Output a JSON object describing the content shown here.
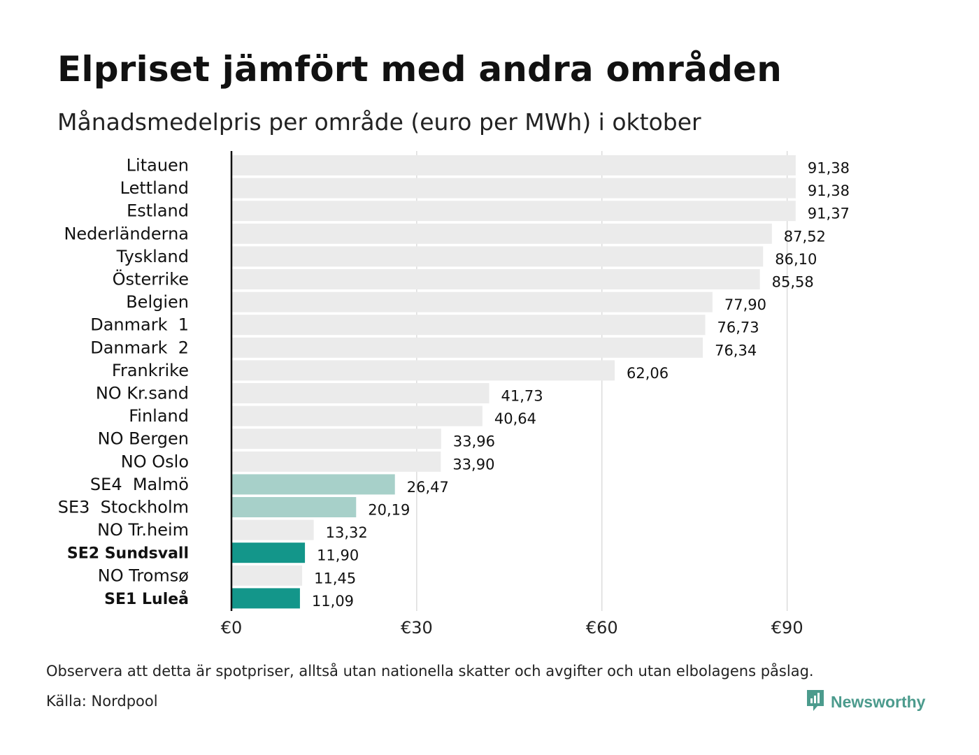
{
  "title": "Elpriset jämfört med andra områden",
  "subtitle": "Månadsmedelpris per område (euro per MWh) i oktober",
  "note": "Observera att detta är spotpriser, alltså utan nationella skatter och avgifter och utan elbolagens påslag.",
  "source": "Källa: Nordpool",
  "brand": {
    "name": "Newsworthy",
    "icon": "newsworthy-logo-icon",
    "color": "#4c9b8d"
  },
  "colors": {
    "default_bar": "#ebebeb",
    "light_highlight": "#a7d0c9",
    "dark_highlight": "#13968a",
    "grid": "#cccccc",
    "axis": "#111111"
  },
  "chart_data": {
    "type": "bar",
    "orientation": "horizontal",
    "xlim": [
      0,
      95
    ],
    "x_ticks": [
      0,
      30,
      60,
      90
    ],
    "x_tick_labels": [
      "€0",
      "€30",
      "€60",
      "€90"
    ],
    "grid": true,
    "categories": [
      "Litauen",
      "Lettland",
      "Estland",
      "Nederländerna",
      "Tyskland",
      "Österrike",
      "Belgien",
      "Danmark  1",
      "Danmark  2",
      "Frankrike",
      "NO Kr.sand",
      "Finland",
      "NO Bergen",
      "NO Oslo",
      "SE4  Malmö",
      "SE3  Stockholm",
      "NO Tr.heim",
      "SE2 Sundsvall",
      "NO Tromsø",
      "SE1 Luleå"
    ],
    "values": [
      91.38,
      91.38,
      91.37,
      87.52,
      86.1,
      85.58,
      77.9,
      76.73,
      76.34,
      62.06,
      41.73,
      40.64,
      33.96,
      33.9,
      26.47,
      20.19,
      13.32,
      11.9,
      11.45,
      11.09
    ],
    "value_labels": [
      "91,38",
      "91,38",
      "91,37",
      "87,52",
      "86,10",
      "85,58",
      "77,90",
      "76,73",
      "76,34",
      "62,06",
      "41,73",
      "40,64",
      "33,96",
      "33,90",
      "26,47",
      "20,19",
      "13,32",
      "11,90",
      "11,45",
      "11,09"
    ],
    "highlight": [
      "none",
      "none",
      "none",
      "none",
      "none",
      "none",
      "none",
      "none",
      "none",
      "none",
      "none",
      "none",
      "none",
      "none",
      "light",
      "light",
      "none",
      "dark",
      "none",
      "dark"
    ]
  }
}
